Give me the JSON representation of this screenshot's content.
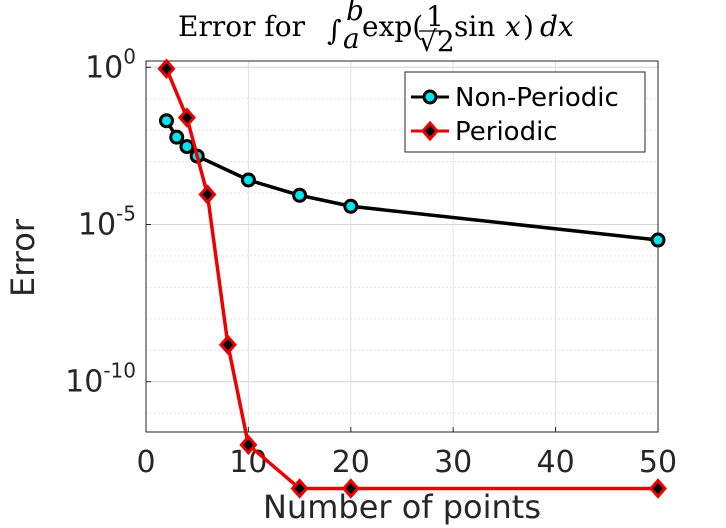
{
  "chart_data": {
    "type": "line",
    "title_prefix": "Error for",
    "xlabel": "Number of points",
    "ylabel": "Error",
    "xlim": [
      0,
      50
    ],
    "ylim_log10": [
      -11.6,
      0.2
    ],
    "y_scale": "log",
    "grid": true,
    "legend_position": "top-right",
    "x_ticks": [
      0,
      10,
      20,
      30,
      40,
      50
    ],
    "y_ticks": [
      {
        "base": "10",
        "exp": "0",
        "log10": 0
      },
      {
        "base": "10",
        "exp": "-5",
        "log10": -5
      },
      {
        "base": "10",
        "exp": "-10",
        "log10": -10
      }
    ],
    "series": [
      {
        "name": "Non-Periodic",
        "line_color": "#000000",
        "marker": "circle",
        "marker_fill": "#00e5ee",
        "marker_edge": "#000000",
        "x": [
          2,
          3,
          4,
          5,
          10,
          15,
          20,
          50
        ],
        "y": [
          0.02,
          0.006,
          0.003,
          0.0015,
          0.00026,
          8.5e-05,
          3.8e-05,
          3.2e-06
        ]
      },
      {
        "name": "Periodic",
        "line_color": "#ee0000",
        "marker": "diamond",
        "marker_fill": "#000000",
        "marker_edge": "#ee0000",
        "x": [
          2,
          4,
          6,
          8,
          10,
          15,
          20,
          50
        ],
        "y": [
          0.9,
          0.025,
          9e-05,
          1.5e-09,
          9.8e-13,
          4e-14,
          4e-14,
          4e-14
        ]
      }
    ]
  }
}
